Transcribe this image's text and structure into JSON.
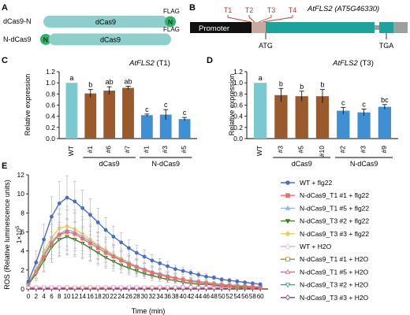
{
  "panelA": {
    "letter": "A",
    "rows": [
      {
        "label": "dCas9-N",
        "body": "dCas9",
        "tag": "FLAG",
        "nls": "N",
        "nls_side": "right"
      },
      {
        "label": "N-dCas9",
        "body": "dCas9",
        "tag": "FLAG",
        "nls": "N",
        "nls_side": "left"
      }
    ]
  },
  "panelB": {
    "letter": "B",
    "gene": "AtFLS2 (AT5G46330)",
    "promoter": "Promoter",
    "targets": [
      "T1",
      "T2",
      "T3",
      "T4"
    ],
    "start_codon": "ATG",
    "stop_codon": "TGA",
    "colors": {
      "promoter": "#111111",
      "exon": "#1ba39c",
      "utr": "#c9a8a0",
      "intron": "#9aa0a0",
      "target": "#c0392b"
    }
  },
  "chart_data": [
    {
      "panel": "C",
      "type": "bar",
      "title": "AtFLS2 (T1)",
      "title_gene": "AtFLS2",
      "title_suffix": " (T1)",
      "ylabel": "Relative expression",
      "ylim": [
        0,
        1.2
      ],
      "yticks": [
        "0.0",
        "0.2",
        "0.4",
        "0.6",
        "0.8",
        "1.0",
        "1.2"
      ],
      "categories": [
        "WT",
        "#1",
        "#6",
        "#7",
        "#1",
        "#3",
        "#5"
      ],
      "values": [
        1.0,
        0.81,
        0.86,
        0.91,
        0.42,
        0.43,
        0.35
      ],
      "errors": [
        0.0,
        0.07,
        0.07,
        0.03,
        0.02,
        0.09,
        0.03
      ],
      "letters": [
        "a",
        "b",
        "ab",
        "ab",
        "c",
        "c",
        "c"
      ],
      "groups": [
        {
          "name": "dCas9",
          "from": 1,
          "to": 3
        },
        {
          "name": "N-dCas9",
          "from": 4,
          "to": 6
        }
      ],
      "colors": [
        "#7ac9d0",
        "#9a5a2c",
        "#9a5a2c",
        "#9a5a2c",
        "#3f8fd4",
        "#3f8fd4",
        "#3f8fd4"
      ]
    },
    {
      "panel": "D",
      "type": "bar",
      "title": "AtFLS2 (T3)",
      "title_gene": "AtFLS2",
      "title_suffix": " (T3)",
      "ylabel": "Relative expression",
      "ylim": [
        0,
        1.2
      ],
      "yticks": [
        "0.0",
        "0.2",
        "0.4",
        "0.6",
        "0.8",
        "1.0",
        "1.2"
      ],
      "categories": [
        "WT",
        "#3",
        "#5",
        "#10",
        "#2",
        "#3",
        "#9"
      ],
      "values": [
        1.0,
        0.78,
        0.76,
        0.76,
        0.5,
        0.47,
        0.57
      ],
      "errors": [
        0.0,
        0.12,
        0.09,
        0.12,
        0.06,
        0.06,
        0.04
      ],
      "letters": [
        "a",
        "b",
        "b",
        "b",
        "c",
        "c",
        "bc"
      ],
      "groups": [
        {
          "name": "dCas9",
          "from": 1,
          "to": 3
        },
        {
          "name": "N-dCas9",
          "from": 4,
          "to": 6
        }
      ],
      "colors": [
        "#7ac9d0",
        "#9a5a2c",
        "#9a5a2c",
        "#9a5a2c",
        "#3f8fd4",
        "#3f8fd4",
        "#3f8fd4"
      ]
    },
    {
      "panel": "E",
      "type": "line",
      "xlabel": "Time (min)",
      "ylabel": "ROS (Relative luminescence units)",
      "yunit": "1×10",
      "yunit_exp": "5",
      "xlim": [
        0,
        62
      ],
      "ylim": [
        0,
        12
      ],
      "xticks": [
        0,
        2,
        4,
        6,
        8,
        10,
        12,
        14,
        16,
        18,
        20,
        22,
        24,
        26,
        28,
        30,
        32,
        34,
        36,
        38,
        40,
        42,
        44,
        46,
        48,
        50,
        52,
        54,
        56,
        58,
        60
      ],
      "yticks": [
        0,
        2,
        4,
        6,
        8,
        10,
        12
      ],
      "x": [
        0,
        2,
        4,
        6,
        8,
        10,
        12,
        14,
        16,
        18,
        20,
        22,
        24,
        26,
        28,
        30,
        32,
        34,
        36,
        38,
        40,
        42,
        44,
        46,
        48,
        50,
        52,
        54,
        56,
        58,
        60
      ],
      "legend_position": "right",
      "series": [
        {
          "name": "WT + flg22",
          "color": "#4a6fbf",
          "marker": "circle",
          "values": [
            0.8,
            2.8,
            5.2,
            7.6,
            9.0,
            9.6,
            9.2,
            8.5,
            7.8,
            7.0,
            6.2,
            5.5,
            4.9,
            4.3,
            3.8,
            3.4,
            3.0,
            2.7,
            2.4,
            2.1,
            1.9,
            1.7,
            1.5,
            1.3,
            1.2,
            1.0,
            0.9,
            0.8,
            0.7,
            0.6,
            0.5
          ],
          "errors": [
            0.3,
            1.2,
            1.6,
            2.1,
            2.3,
            2.3,
            2.1,
            1.9,
            1.7,
            1.5,
            1.3,
            1.1,
            1.0,
            0.9,
            0.8,
            0.7,
            0.6,
            0.5,
            0.5,
            0.4,
            0.4,
            0.3,
            0.3,
            0.3,
            0.2,
            0.2,
            0.2,
            0.2,
            0.1,
            0.1,
            0.1
          ]
        },
        {
          "name": "N-dCas9_T1 #1 + flg22",
          "color": "#e8726a",
          "marker": "square",
          "values": [
            0.6,
            1.8,
            3.4,
            4.8,
            5.7,
            6.0,
            5.8,
            5.3,
            4.8,
            4.3,
            3.8,
            3.4,
            3.0,
            2.6,
            2.3,
            2.0,
            1.7,
            1.5,
            1.3,
            1.1,
            1.0,
            0.8,
            0.7,
            0.6,
            0.5,
            0.4,
            0.4,
            0.3,
            0.3,
            0.2,
            0.2
          ],
          "errors": [
            0.2,
            0.9,
            1.5,
            2.0,
            2.2,
            2.3,
            2.2,
            2.0,
            1.8,
            1.6,
            1.4,
            1.2,
            1.0,
            0.9,
            0.8,
            0.7,
            0.6,
            0.5,
            0.4,
            0.4,
            0.3,
            0.3,
            0.2,
            0.2,
            0.2,
            0.2,
            0.1,
            0.1,
            0.1,
            0.1,
            0.1
          ]
        },
        {
          "name": "N-dCas9_T1 #5 + flg22",
          "color": "#8fb4e6",
          "marker": "triangle-up",
          "values": [
            0.6,
            1.9,
            3.6,
            5.0,
            5.8,
            6.2,
            6.0,
            5.5,
            5.0,
            4.5,
            4.0,
            3.5,
            3.1,
            2.7,
            2.4,
            2.1,
            1.8,
            1.6,
            1.4,
            1.2,
            1.0,
            0.9,
            0.8,
            0.7,
            0.6,
            0.5,
            0.4,
            0.4,
            0.3,
            0.3,
            0.2
          ],
          "errors": [
            0.2,
            0.8,
            1.3,
            1.8,
            2.0,
            2.1,
            2.0,
            1.8,
            1.6,
            1.4,
            1.2,
            1.1,
            0.9,
            0.8,
            0.7,
            0.6,
            0.5,
            0.5,
            0.4,
            0.3,
            0.3,
            0.3,
            0.2,
            0.2,
            0.2,
            0.1,
            0.1,
            0.1,
            0.1,
            0.1,
            0.1
          ]
        },
        {
          "name": "N-dCas9_T3 #2 + flg22",
          "color": "#3f7f2a",
          "marker": "triangle-down",
          "values": [
            0.5,
            1.6,
            3.0,
            4.4,
            5.2,
            5.5,
            5.2,
            4.8,
            4.3,
            3.8,
            3.3,
            2.9,
            2.5,
            2.2,
            1.9,
            1.6,
            1.4,
            1.2,
            1.0,
            0.9,
            0.7,
            0.6,
            0.5,
            0.5,
            0.4,
            0.3,
            0.3,
            0.2,
            0.2,
            0.2,
            0.1
          ],
          "errors": [
            0.2,
            0.7,
            1.2,
            1.6,
            1.8,
            1.9,
            1.8,
            1.6,
            1.4,
            1.3,
            1.1,
            1.0,
            0.8,
            0.7,
            0.6,
            0.5,
            0.5,
            0.4,
            0.3,
            0.3,
            0.3,
            0.2,
            0.2,
            0.2,
            0.1,
            0.1,
            0.1,
            0.1,
            0.1,
            0.1,
            0.1
          ]
        },
        {
          "name": "N-dCas9_T3 #3 + flg22",
          "color": "#f0c85a",
          "marker": "diamond",
          "values": [
            0.6,
            2.0,
            3.9,
            5.4,
            6.4,
            6.6,
            6.3,
            5.8,
            5.2,
            4.6,
            4.1,
            3.6,
            3.2,
            2.8,
            2.4,
            2.1,
            1.8,
            1.6,
            1.4,
            1.2,
            1.0,
            0.9,
            0.8,
            0.7,
            0.6,
            0.5,
            0.4,
            0.4,
            0.3,
            0.3,
            0.2
          ],
          "errors": [
            0.2,
            0.9,
            1.4,
            1.8,
            2.0,
            2.1,
            2.0,
            1.8,
            1.6,
            1.4,
            1.3,
            1.1,
            1.0,
            0.9,
            0.8,
            0.7,
            0.6,
            0.5,
            0.4,
            0.4,
            0.3,
            0.3,
            0.2,
            0.2,
            0.2,
            0.2,
            0.1,
            0.1,
            0.1,
            0.1,
            0.1
          ]
        },
        {
          "name": "WT + H2O",
          "color": "#f2a7d8",
          "marker": "circle-open",
          "values": [
            0.2,
            0.2,
            0.2,
            0.2,
            0.2,
            0.2,
            0.2,
            0.2,
            0.2,
            0.2,
            0.2,
            0.2,
            0.2,
            0.2,
            0.2,
            0.2,
            0.2,
            0.2,
            0.2,
            0.2,
            0.2,
            0.2,
            0.2,
            0.2,
            0.2,
            0.2,
            0.2,
            0.2,
            0.2,
            0.2,
            0.2
          ],
          "errors": []
        },
        {
          "name": "N-dCas9_T1 #1 + H2O",
          "color": "#a58a2a",
          "marker": "square-open",
          "values": [
            0.15,
            0.15,
            0.15,
            0.15,
            0.15,
            0.15,
            0.15,
            0.15,
            0.15,
            0.15,
            0.15,
            0.15,
            0.15,
            0.15,
            0.15,
            0.15,
            0.15,
            0.15,
            0.15,
            0.15,
            0.15,
            0.15,
            0.15,
            0.15,
            0.15,
            0.15,
            0.15,
            0.15,
            0.15,
            0.15,
            0.15
          ],
          "errors": []
        },
        {
          "name": "N-dCas9_T1 #5 + H2O",
          "color": "#e35a8c",
          "marker": "triangle-up-open",
          "values": [
            0.1,
            0.1,
            0.1,
            0.1,
            0.1,
            0.1,
            0.1,
            0.1,
            0.1,
            0.1,
            0.1,
            0.1,
            0.1,
            0.1,
            0.1,
            0.1,
            0.1,
            0.1,
            0.1,
            0.1,
            0.1,
            0.1,
            0.1,
            0.1,
            0.1,
            0.1,
            0.1,
            0.1,
            0.1,
            0.1,
            0.1
          ],
          "errors": []
        },
        {
          "name": "N-dCas9_T3 #2 + H2O",
          "color": "#2aa8a0",
          "marker": "triangle-down-open",
          "values": [
            0.12,
            0.12,
            0.12,
            0.12,
            0.12,
            0.12,
            0.12,
            0.12,
            0.12,
            0.12,
            0.12,
            0.12,
            0.12,
            0.12,
            0.12,
            0.12,
            0.12,
            0.12,
            0.12,
            0.12,
            0.12,
            0.12,
            0.12,
            0.12,
            0.12,
            0.12,
            0.12,
            0.12,
            0.12,
            0.12,
            0.12
          ],
          "errors": []
        },
        {
          "name": "N-dCas9_T3 #3 + H2O",
          "color": "#7a3a9a",
          "marker": "diamond-open",
          "values": [
            0.08,
            0.08,
            0.08,
            0.08,
            0.08,
            0.08,
            0.08,
            0.08,
            0.08,
            0.08,
            0.08,
            0.08,
            0.08,
            0.08,
            0.08,
            0.08,
            0.08,
            0.08,
            0.08,
            0.08,
            0.08,
            0.08,
            0.08,
            0.08,
            0.08,
            0.08,
            0.08,
            0.08,
            0.08,
            0.08,
            0.08
          ],
          "errors": []
        }
      ]
    }
  ]
}
